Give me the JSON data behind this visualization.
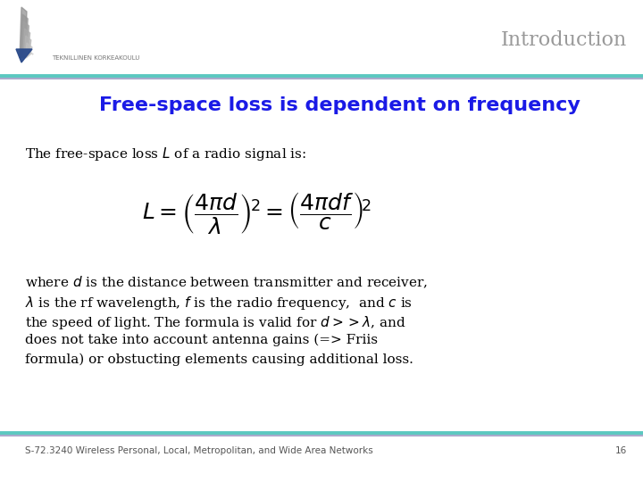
{
  "title": "Introduction",
  "slide_title": "Free-space loss is dependent on frequency",
  "slide_title_color": "#1A1AE6",
  "background_color": "#FFFFFF",
  "header_line_color_teal": "#5BC8C0",
  "header_line_color_lavender": "#AAAACC",
  "footer_line_color_teal": "#5BC8C0",
  "footer_line_color_lavender": "#AAAACC",
  "footer_text": "S-72.3240 Wireless Personal, Local, Metropolitan, and Wide Area Networks",
  "footer_page": "16",
  "title_color": "#999999",
  "title_fontsize": 16,
  "slide_title_fontsize": 16,
  "body_fontsize": 11,
  "formula_fontsize": 14,
  "footer_fontsize": 7.5
}
